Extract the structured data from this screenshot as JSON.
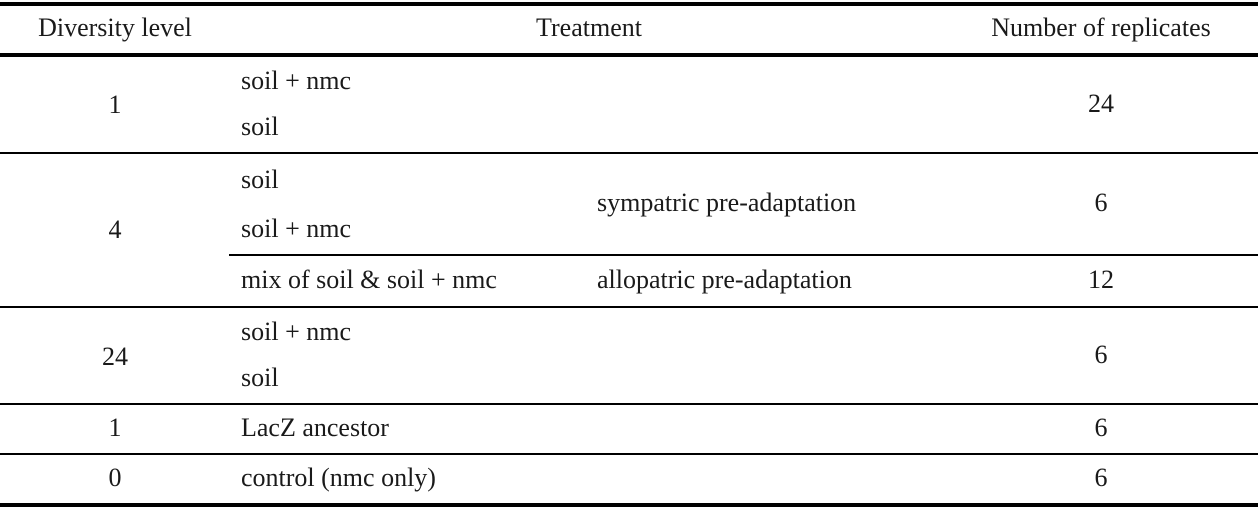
{
  "header": {
    "diversity_level": "Diversity level",
    "treatment": "Treatment",
    "number_of_replicates": "Number of replicates"
  },
  "rows": [
    {
      "diversity": "1",
      "treatments": [
        "soil + nmc",
        "soil"
      ],
      "replicates": "24"
    },
    {
      "diversity": "4",
      "sub": [
        {
          "treatments": [
            "soil",
            "soil + nmc"
          ],
          "adaptation": "sympatric pre-adaptation",
          "replicates": "6"
        },
        {
          "treatments": [
            "mix of soil & soil + nmc"
          ],
          "adaptation": "allopatric pre-adaptation",
          "replicates": "12"
        }
      ]
    },
    {
      "diversity": "24",
      "treatments": [
        "soil + nmc",
        "soil"
      ],
      "replicates": "6"
    },
    {
      "diversity": "1",
      "treatments": [
        "LacZ ancestor"
      ],
      "replicates": "6"
    },
    {
      "diversity": "0",
      "treatments": [
        "control (nmc only)"
      ],
      "replicates": "6"
    }
  ]
}
